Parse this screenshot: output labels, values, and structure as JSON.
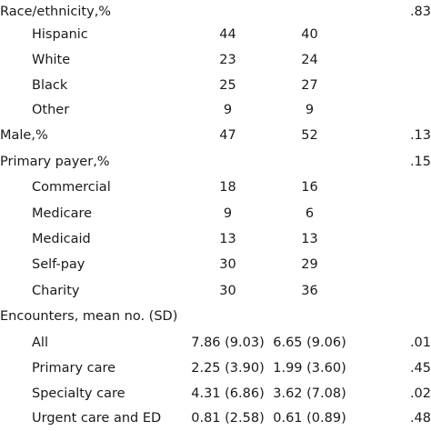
{
  "rows": [
    {
      "label": "Race/ethnicity,%",
      "v1": "",
      "v2": "",
      "p": ".83",
      "indent": false
    },
    {
      "label": "Hispanic",
      "v1": "44",
      "v2": "40",
      "p": "",
      "indent": true
    },
    {
      "label": "White",
      "v1": "23",
      "v2": "24",
      "p": "",
      "indent": true
    },
    {
      "label": "Black",
      "v1": "25",
      "v2": "27",
      "p": "",
      "indent": true
    },
    {
      "label": "Other",
      "v1": "9",
      "v2": "9",
      "p": "",
      "indent": true
    },
    {
      "label": "Male,%",
      "v1": "47",
      "v2": "52",
      "p": ".13",
      "indent": false
    },
    {
      "label": "Primary payer,%",
      "v1": "",
      "v2": "",
      "p": ".15",
      "indent": false
    },
    {
      "label": "Commercial",
      "v1": "18",
      "v2": "16",
      "p": "",
      "indent": true
    },
    {
      "label": "Medicare",
      "v1": "9",
      "v2": "6",
      "p": "",
      "indent": true
    },
    {
      "label": "Medicaid",
      "v1": "13",
      "v2": "13",
      "p": "",
      "indent": true
    },
    {
      "label": "Self-pay",
      "v1": "30",
      "v2": "29",
      "p": "",
      "indent": true
    },
    {
      "label": "Charity",
      "v1": "30",
      "v2": "36",
      "p": "",
      "indent": true
    },
    {
      "label": "Encounters, mean no. (SD)",
      "v1": "",
      "v2": "",
      "p": "",
      "indent": false
    },
    {
      "label": "All",
      "v1": "7.86 (9.03)",
      "v2": "6.65 (9.06)",
      "p": ".01",
      "indent": true
    },
    {
      "label": "Primary care",
      "v1": "2.25 (3.90)",
      "v2": "1.99 (3.60)",
      "p": ".45",
      "indent": true
    },
    {
      "label": "Specialty care",
      "v1": "4.31 (6.86)",
      "v2": "3.62 (7.08)",
      "p": ".02",
      "indent": true
    },
    {
      "label": "Urgent care and ED",
      "v1": "0.81 (2.58)",
      "v2": "0.61 (0.89)",
      "p": ".48",
      "indent": true
    }
  ]
}
